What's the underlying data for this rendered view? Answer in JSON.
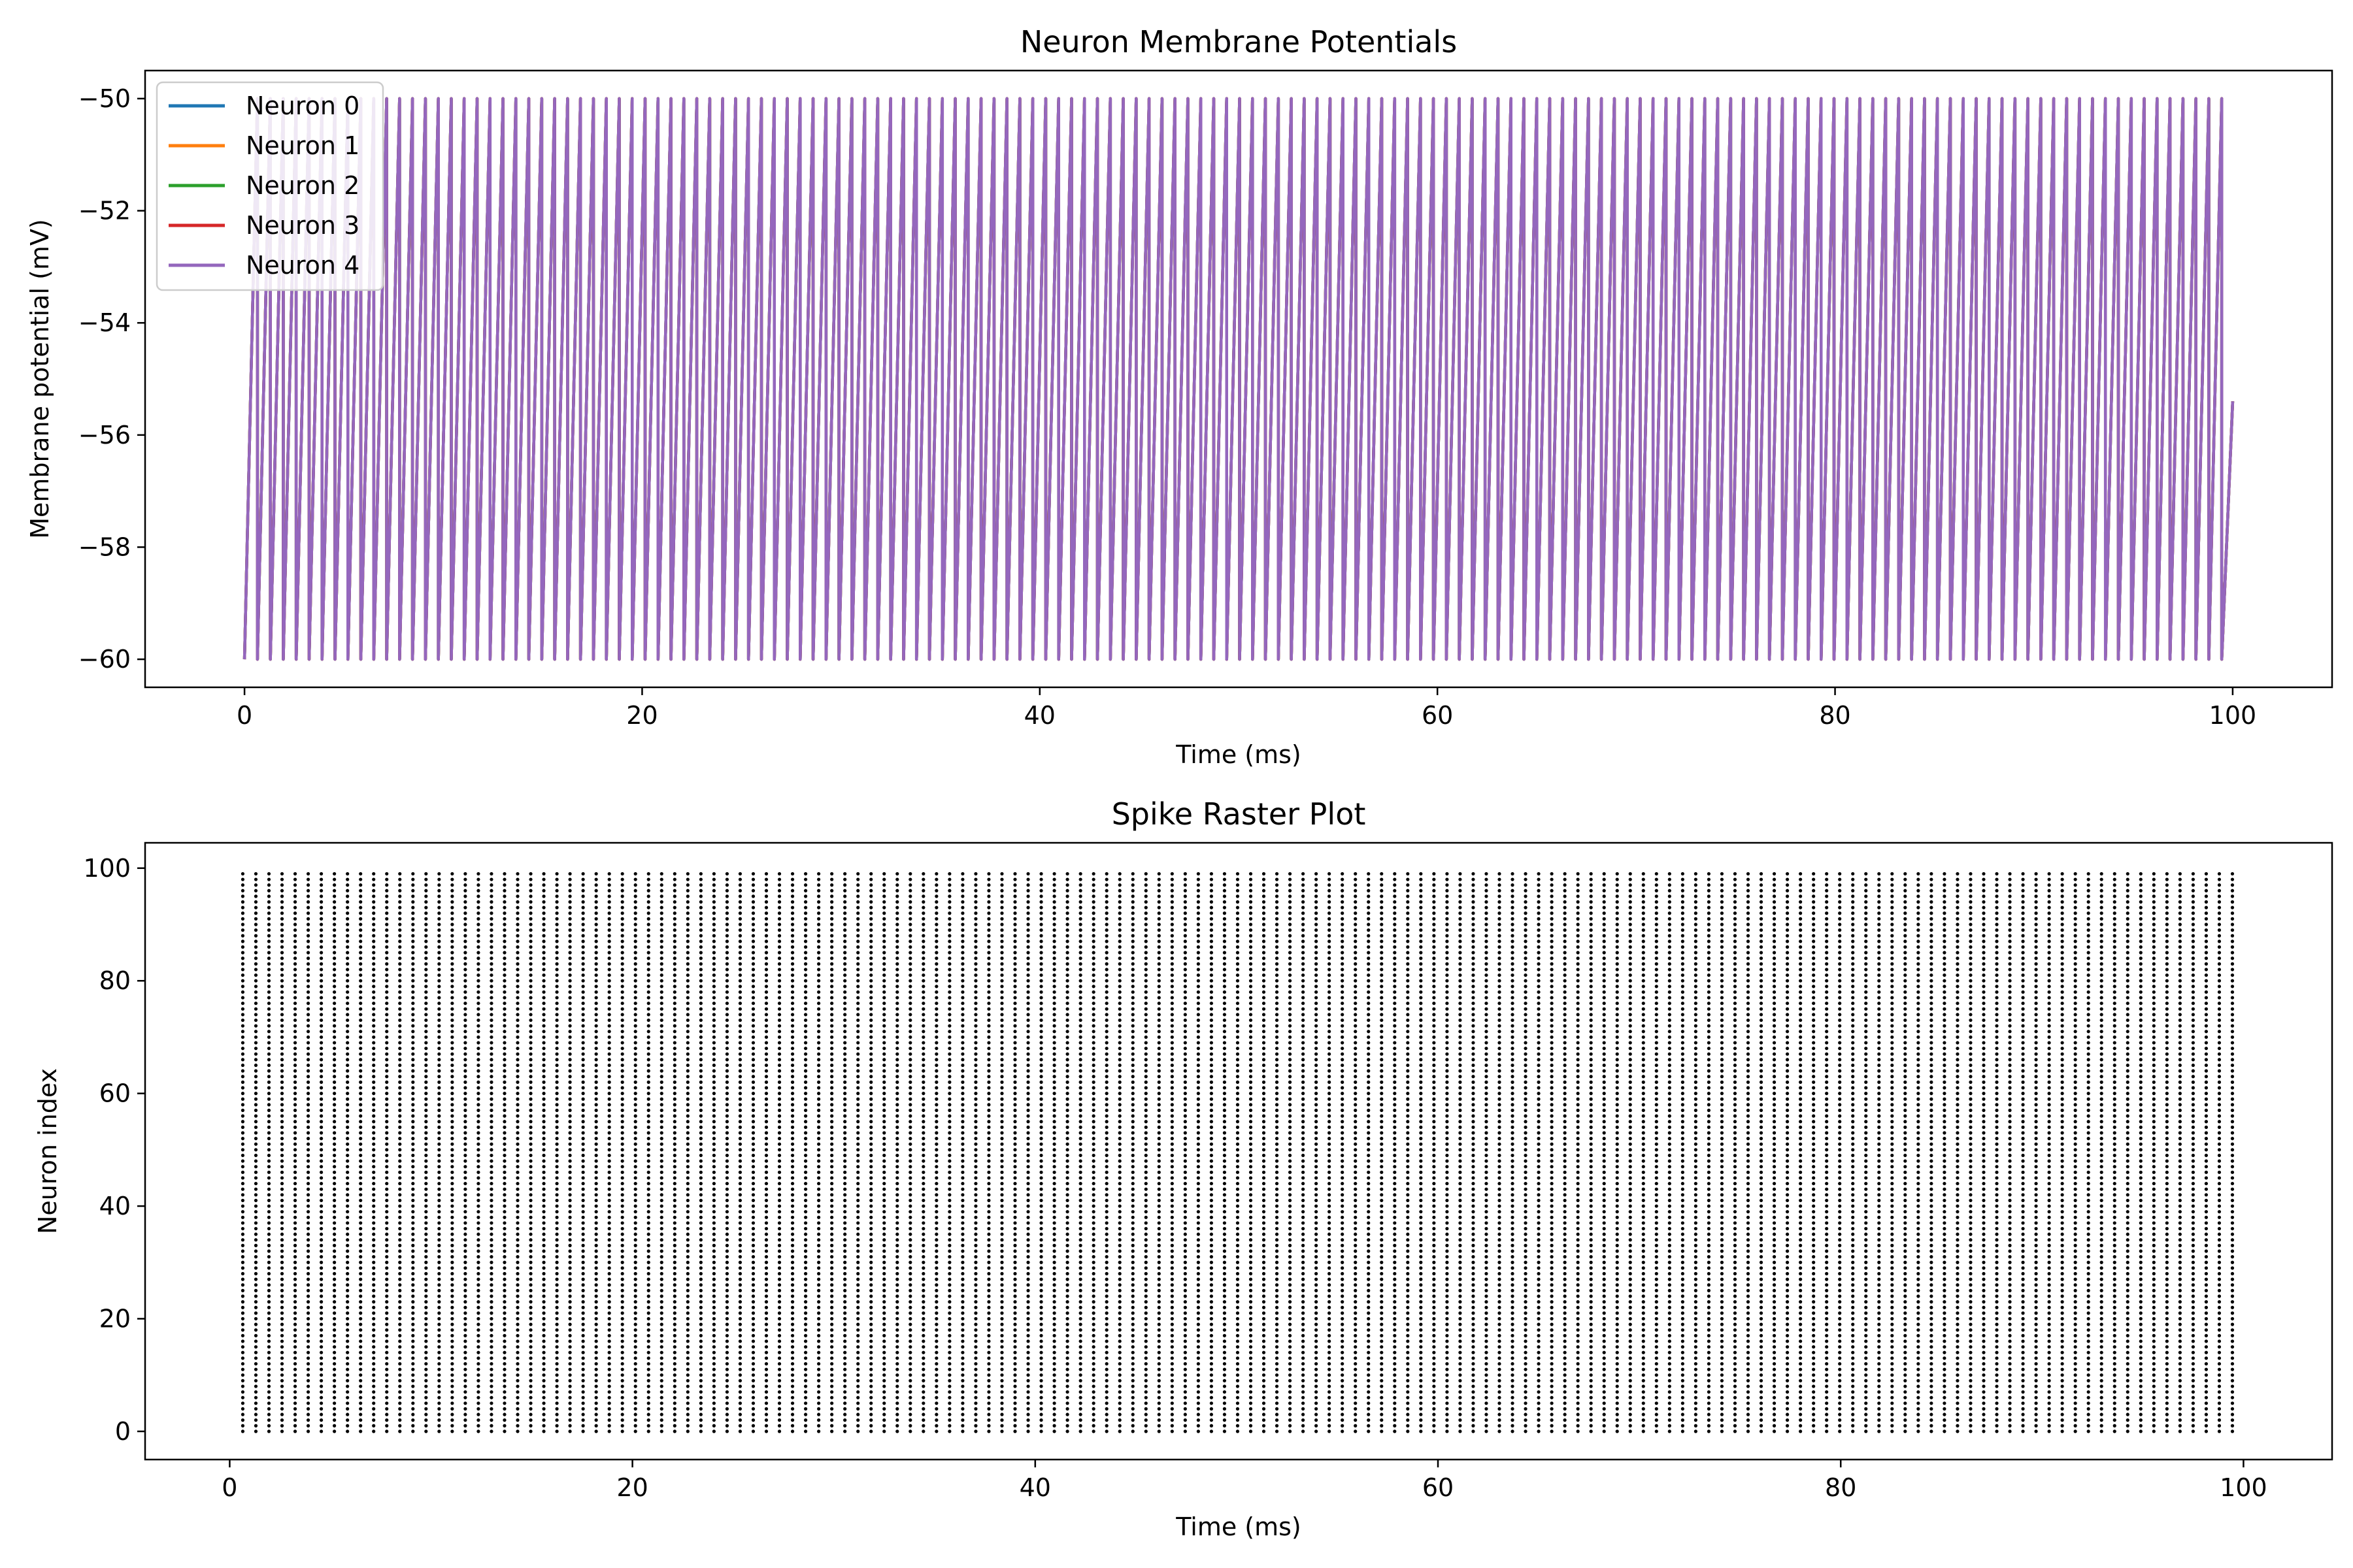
{
  "chart_data": [
    {
      "type": "line",
      "title": "Neuron Membrane Potentials",
      "xlabel": "Time (ms)",
      "ylabel": "Membrane potential (mV)",
      "xlim": [
        -5,
        105
      ],
      "ylim": [
        -60.5,
        -49.5
      ],
      "xticks": [
        0,
        20,
        40,
        60,
        80,
        100
      ],
      "xtick_labels": [
        "0",
        "20",
        "40",
        "60",
        "80",
        "100"
      ],
      "yticks": [
        -60,
        -58,
        -56,
        -54,
        -52,
        -50
      ],
      "ytick_labels": [
        "−60",
        "−58",
        "−56",
        "−54",
        "−52",
        "−50"
      ],
      "grid": false,
      "legend_position": "top-left",
      "sawtooth": {
        "reset_potential": -60,
        "threshold": -50,
        "spike_period_ms": 0.65,
        "first_spike_ms": 0.65,
        "last_spike_ms": 99.45,
        "end_ms": 100,
        "end_value": -55.4
      },
      "series": [
        {
          "name": "Neuron 0",
          "color": "#1f77b4"
        },
        {
          "name": "Neuron 1",
          "color": "#ff7f0e"
        },
        {
          "name": "Neuron 2",
          "color": "#2ca02c"
        },
        {
          "name": "Neuron 3",
          "color": "#d62728"
        },
        {
          "name": "Neuron 4",
          "color": "#9467bd"
        }
      ]
    },
    {
      "type": "scatter",
      "title": "Spike Raster Plot",
      "xlabel": "Time (ms)",
      "ylabel": "Neuron index",
      "xlim": [
        -4.2,
        104.4
      ],
      "ylim": [
        -5,
        104.5
      ],
      "xticks": [
        0,
        20,
        40,
        60,
        80,
        100
      ],
      "xtick_labels": [
        "0",
        "20",
        "40",
        "60",
        "80",
        "100"
      ],
      "yticks": [
        0,
        20,
        40,
        60,
        80,
        100
      ],
      "ytick_labels": [
        "0",
        "20",
        "40",
        "60",
        "80",
        "100"
      ],
      "grid": false,
      "marker_color": "#000000",
      "spike_times": {
        "first_ms": 0.65,
        "period_ms": 0.65,
        "count": 153
      },
      "neuron_indices": {
        "first": 0,
        "last": 99
      }
    }
  ]
}
